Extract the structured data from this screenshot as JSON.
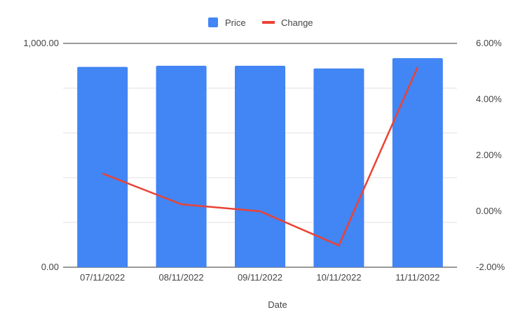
{
  "chart_data": {
    "type": "bar+line",
    "categories": [
      "07/11/2022",
      "08/11/2022",
      "09/11/2022",
      "10/11/2022",
      "11/11/2022"
    ],
    "series": [
      {
        "name": "Price",
        "type": "bar",
        "axis": "left",
        "color": "#4285f4",
        "values": [
          895,
          900,
          900,
          888,
          934
        ]
      },
      {
        "name": "Change",
        "type": "line",
        "axis": "right",
        "color": "#ea4335",
        "values": [
          1.35,
          0.25,
          0.0,
          -1.22,
          5.15
        ]
      }
    ],
    "xlabel": "Date",
    "left_axis": {
      "ylim": [
        0,
        1000
      ],
      "tick_labels": [
        "0.00",
        "1,000.00"
      ]
    },
    "right_axis": {
      "ylim": [
        -2,
        6
      ],
      "ticks": [
        -2,
        0,
        2,
        4,
        6
      ],
      "tick_labels": [
        "-2.00%",
        "0.00%",
        "2.00%",
        "4.00%",
        "6.00%"
      ]
    },
    "grid": true,
    "legend_position": "top"
  }
}
